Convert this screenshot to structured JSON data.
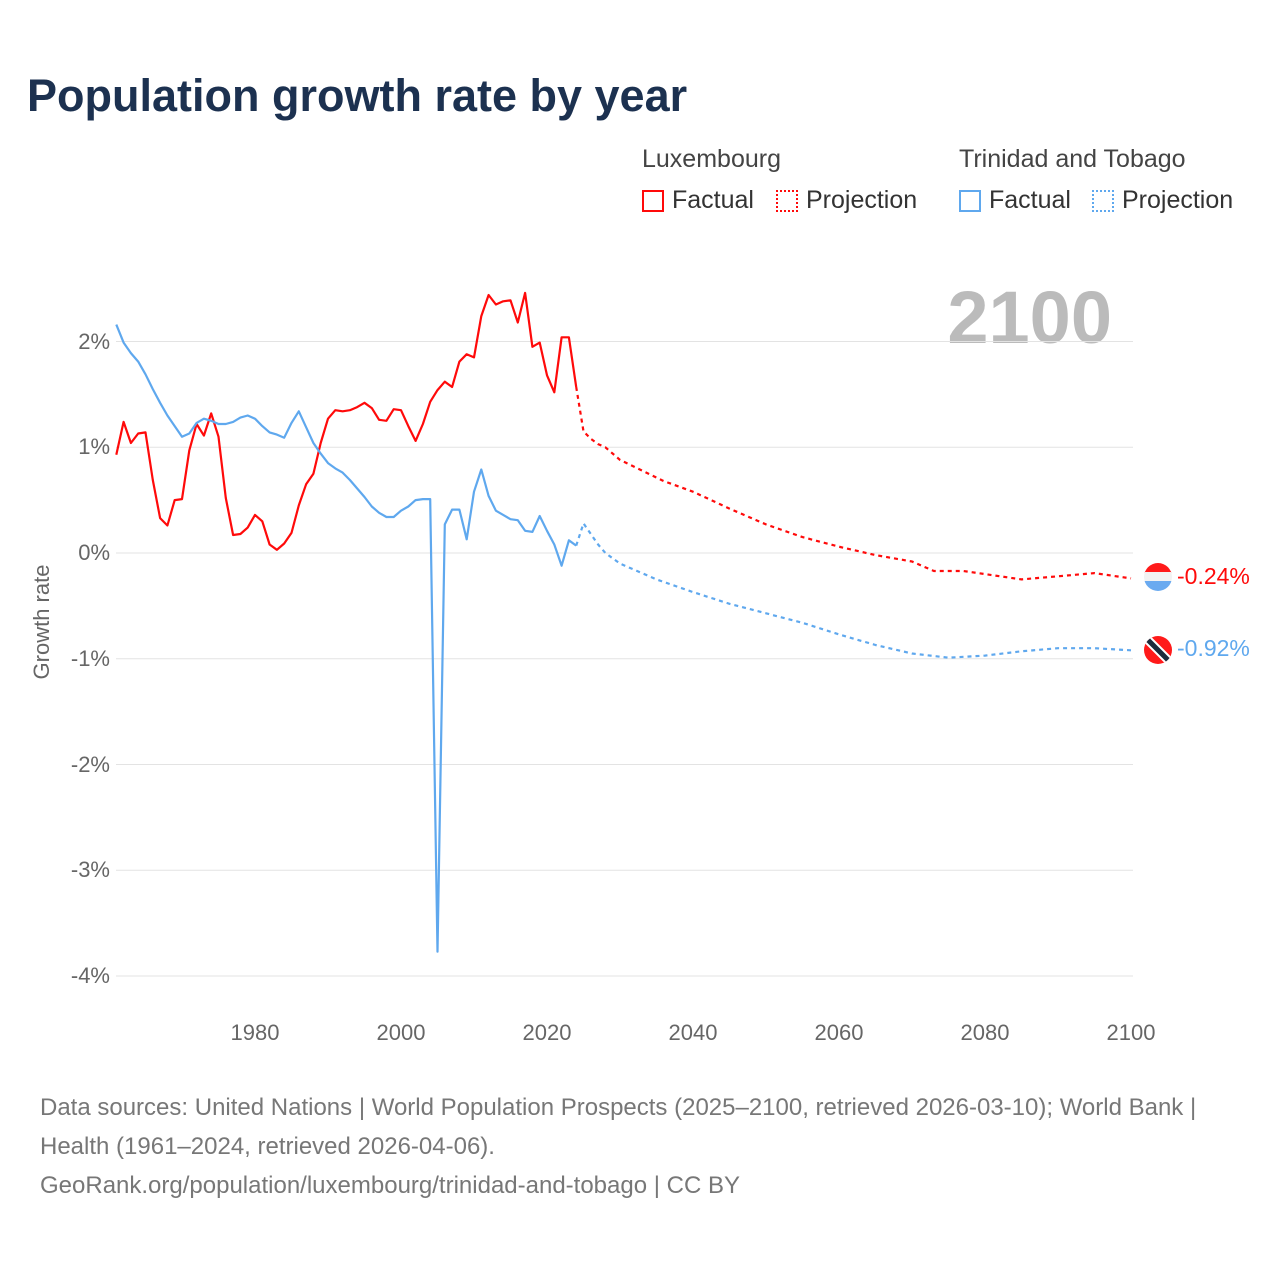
{
  "title": "Population growth rate by year",
  "highlight_year": "2100",
  "legend": {
    "groups": [
      {
        "name": "Luxembourg",
        "factual": "Factual",
        "projection": "Projection",
        "color": "#ff0a0a"
      },
      {
        "name": "Trinidad and Tobago",
        "factual": "Factual",
        "projection": "Projection",
        "color": "#5fa8ee"
      }
    ]
  },
  "end_labels": {
    "luxembourg": "-0.24%",
    "trinidad": "-0.92%"
  },
  "source": {
    "line1": "Data sources: United Nations | World Population Prospects (2025–2100, retrieved 2026-03-10); World Bank | Health (1961–2024, retrieved 2026-04-06).",
    "line2": "GeoRank.org/population/luxembourg/trinidad-and-tobago | CC BY"
  },
  "chart_data": {
    "type": "line",
    "title": "Population growth rate by year",
    "xlabel": "",
    "ylabel": "Growth rate",
    "xlim": [
      1961,
      2100
    ],
    "ylim": [
      -4.3,
      2.6
    ],
    "x_ticks": [
      "1980",
      "2000",
      "2020",
      "2040",
      "2060",
      "2080",
      "2100"
    ],
    "y_ticks": [
      {
        "v": 2,
        "label": "2%"
      },
      {
        "v": 1,
        "label": "1%"
      },
      {
        "v": 0,
        "label": "0%"
      },
      {
        "v": -1,
        "label": "-1%"
      },
      {
        "v": -2,
        "label": "-2%"
      },
      {
        "v": -3,
        "label": "-3%"
      },
      {
        "v": -4,
        "label": "-4%"
      }
    ],
    "grid": true,
    "legend_position": "top-right",
    "series": [
      {
        "name": "Luxembourg",
        "kind": "factual",
        "color": "#ff0a0a",
        "start": 1961,
        "values": [
          0.93,
          1.24,
          1.04,
          1.13,
          1.14,
          0.69,
          0.33,
          0.26,
          0.5,
          0.51,
          0.97,
          1.22,
          1.11,
          1.32,
          1.1,
          0.52,
          0.17,
          0.18,
          0.24,
          0.36,
          0.3,
          0.08,
          0.03,
          0.09,
          0.19,
          0.45,
          0.65,
          0.75,
          1.04,
          1.27,
          1.35,
          1.34,
          1.35,
          1.38,
          1.42,
          1.37,
          1.26,
          1.25,
          1.36,
          1.35,
          1.2,
          1.06,
          1.22,
          1.43,
          1.54,
          1.62,
          1.57,
          1.81,
          1.88,
          1.85,
          2.24,
          2.44,
          2.35,
          2.38,
          2.39,
          2.18,
          2.46,
          1.95,
          1.99,
          1.68,
          1.52,
          2.04,
          2.04,
          1.57
        ]
      },
      {
        "name": "Luxembourg",
        "kind": "projection",
        "color": "#ff0a0a",
        "points": [
          [
            2024,
            1.57
          ],
          [
            2025,
            1.15
          ],
          [
            2026,
            1.08
          ],
          [
            2027,
            1.03
          ],
          [
            2028,
            1.0
          ],
          [
            2030,
            0.88
          ],
          [
            2033,
            0.78
          ],
          [
            2036,
            0.68
          ],
          [
            2040,
            0.58
          ],
          [
            2045,
            0.42
          ],
          [
            2050,
            0.27
          ],
          [
            2055,
            0.15
          ],
          [
            2060,
            0.06
          ],
          [
            2065,
            -0.02
          ],
          [
            2070,
            -0.08
          ],
          [
            2073,
            -0.17
          ],
          [
            2077,
            -0.17
          ],
          [
            2080,
            -0.2
          ],
          [
            2085,
            -0.25
          ],
          [
            2090,
            -0.22
          ],
          [
            2095,
            -0.19
          ],
          [
            2100,
            -0.24
          ]
        ]
      },
      {
        "name": "Trinidad and Tobago",
        "kind": "factual",
        "color": "#5fa8ee",
        "start": 1961,
        "values": [
          2.16,
          1.99,
          1.89,
          1.81,
          1.69,
          1.55,
          1.42,
          1.3,
          1.2,
          1.1,
          1.13,
          1.23,
          1.27,
          1.25,
          1.22,
          1.22,
          1.24,
          1.28,
          1.3,
          1.27,
          1.2,
          1.14,
          1.12,
          1.09,
          1.23,
          1.34,
          1.19,
          1.04,
          0.94,
          0.85,
          0.8,
          0.76,
          0.69,
          0.61,
          0.53,
          0.44,
          0.38,
          0.34,
          0.34,
          0.4,
          0.44,
          0.5,
          0.51,
          0.51,
          -3.77,
          0.27,
          0.41,
          0.41,
          0.13,
          0.58,
          0.79,
          0.54,
          0.4,
          0.36,
          0.32,
          0.31,
          0.21,
          0.2,
          0.35,
          0.21,
          0.08,
          -0.12,
          0.12,
          0.07
        ]
      },
      {
        "name": "Trinidad and Tobago",
        "kind": "projection",
        "color": "#5fa8ee",
        "points": [
          [
            2024,
            0.07
          ],
          [
            2025,
            0.28
          ],
          [
            2026,
            0.18
          ],
          [
            2027,
            0.08
          ],
          [
            2028,
            0.0
          ],
          [
            2030,
            -0.1
          ],
          [
            2035,
            -0.25
          ],
          [
            2040,
            -0.37
          ],
          [
            2045,
            -0.48
          ],
          [
            2050,
            -0.57
          ],
          [
            2055,
            -0.66
          ],
          [
            2060,
            -0.77
          ],
          [
            2065,
            -0.87
          ],
          [
            2070,
            -0.95
          ],
          [
            2075,
            -0.99
          ],
          [
            2080,
            -0.97
          ],
          [
            2085,
            -0.93
          ],
          [
            2090,
            -0.9
          ],
          [
            2095,
            -0.9
          ],
          [
            2100,
            -0.92
          ]
        ]
      }
    ]
  }
}
